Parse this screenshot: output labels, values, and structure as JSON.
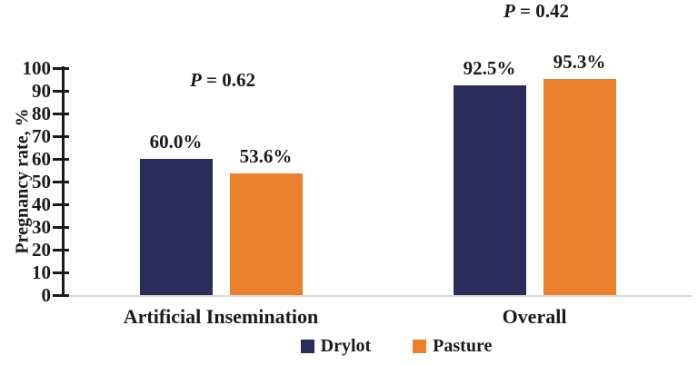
{
  "chart_data": {
    "type": "bar",
    "title": "",
    "ylabel": "Pregnancy rate, %",
    "xlabel": "",
    "ylim": [
      0,
      100
    ],
    "yticks": [
      0,
      10,
      20,
      30,
      40,
      50,
      60,
      70,
      80,
      90,
      100
    ],
    "grid": false,
    "legend_position": "bottom",
    "categories": [
      "Artificial Insemination",
      "Overall"
    ],
    "series": [
      {
        "name": "Drylot",
        "color": "#2A2D5A",
        "values": [
          60.0,
          92.5
        ],
        "value_labels": [
          "60.0%",
          "92.5%"
        ]
      },
      {
        "name": "Pasture",
        "color": "#E8802D",
        "values": [
          53.6,
          95.3
        ],
        "value_labels": [
          "53.6%",
          "95.3%"
        ]
      }
    ],
    "p_values": [
      {
        "symbol": "P",
        "rest": " = 0.62"
      },
      {
        "symbol": "P",
        "rest": " = 0.42"
      }
    ]
  }
}
